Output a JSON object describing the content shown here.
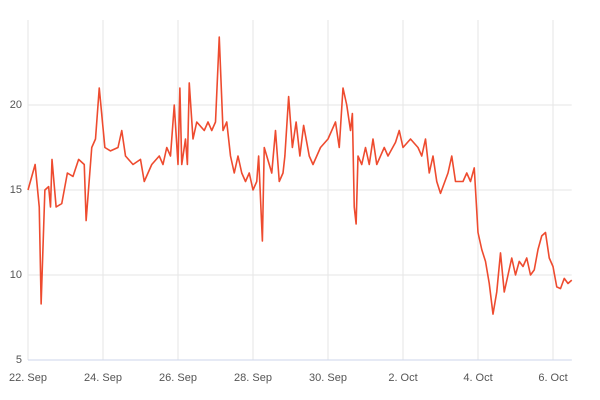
{
  "chart_data": {
    "type": "line",
    "x": [
      0,
      0.19,
      0.3,
      0.35,
      0.45,
      0.55,
      0.6,
      0.64,
      0.75,
      0.9,
      1.05,
      1.2,
      1.35,
      1.5,
      1.55,
      1.7,
      1.8,
      1.9,
      2.05,
      2.2,
      2.4,
      2.5,
      2.6,
      2.8,
      3.0,
      3.1,
      3.3,
      3.5,
      3.6,
      3.7,
      3.8,
      3.9,
      4.0,
      4.05,
      4.1,
      4.2,
      4.25,
      4.3,
      4.4,
      4.5,
      4.7,
      4.8,
      4.9,
      5.0,
      5.1,
      5.2,
      5.3,
      5.4,
      5.5,
      5.6,
      5.7,
      5.8,
      5.9,
      6.0,
      6.1,
      6.15,
      6.25,
      6.3,
      6.5,
      6.6,
      6.7,
      6.8,
      6.85,
      6.95,
      7.05,
      7.15,
      7.25,
      7.35,
      7.5,
      7.6,
      7.8,
      8.0,
      8.2,
      8.3,
      8.4,
      8.5,
      8.6,
      8.65,
      8.7,
      8.75,
      8.8,
      8.9,
      9.0,
      9.1,
      9.2,
      9.3,
      9.5,
      9.6,
      9.8,
      9.9,
      10.0,
      10.2,
      10.4,
      10.5,
      10.6,
      10.7,
      10.8,
      10.9,
      11.0,
      11.2,
      11.3,
      11.4,
      11.6,
      11.7,
      11.8,
      11.9,
      12.0,
      12.1,
      12.2,
      12.3,
      12.4,
      12.5,
      12.6,
      12.7,
      12.8,
      12.9,
      13.0,
      13.1,
      13.2,
      13.3,
      13.4,
      13.5,
      13.6,
      13.7,
      13.8,
      13.9,
      14.0,
      14.1,
      14.2,
      14.3,
      14.4,
      14.5
    ],
    "series": [
      {
        "color": "#ee4b2f",
        "values": [
          15,
          16.5,
          14,
          8.3,
          15,
          15.2,
          14,
          16.8,
          14,
          14.2,
          16,
          15.8,
          16.8,
          16.5,
          13.2,
          17.5,
          18,
          21,
          17.5,
          17.3,
          17.5,
          18.5,
          17,
          16.5,
          16.8,
          15.5,
          16.5,
          17,
          16.5,
          17.5,
          17,
          20,
          16.5,
          21,
          16.5,
          18,
          16.5,
          21.3,
          18,
          19,
          18.5,
          19,
          18.5,
          19,
          24,
          18.5,
          19,
          17,
          16,
          17,
          16,
          15.5,
          16,
          15,
          15.5,
          17,
          12,
          17.5,
          16,
          18.5,
          15.5,
          16,
          17,
          20.5,
          17.5,
          19,
          17,
          18.8,
          17,
          16.5,
          17.5,
          18,
          19,
          17.5,
          21,
          20,
          18.5,
          19.5,
          14,
          13,
          17,
          16.5,
          17.5,
          16.5,
          18,
          16.5,
          17.5,
          17,
          17.8,
          18.5,
          17.5,
          18,
          17.5,
          17,
          18,
          16,
          17,
          15.5,
          14.8,
          16,
          17,
          15.5,
          15.5,
          16,
          15.5,
          16.3,
          12.5,
          11.5,
          10.8,
          9.5,
          7.7,
          9,
          11.3,
          9,
          10,
          11,
          10,
          10.8,
          10.5,
          11,
          10,
          10.3,
          11.5,
          12.3,
          12.5,
          11,
          10.5,
          9.3,
          9.2,
          9.8,
          9.5,
          9.7
        ]
      }
    ],
    "xlim": [
      0,
      14.5
    ],
    "xticks": [
      {
        "value": 0,
        "label": "22. Sep"
      },
      {
        "value": 2,
        "label": "24. Sep"
      },
      {
        "value": 4,
        "label": "26. Sep"
      },
      {
        "value": 6,
        "label": "28. Sep"
      },
      {
        "value": 8,
        "label": "30. Sep"
      },
      {
        "value": 10,
        "label": "2. Oct"
      },
      {
        "value": 12,
        "label": "4. Oct"
      },
      {
        "value": 14,
        "label": "6. Oct"
      }
    ],
    "ylim": [
      5,
      25
    ],
    "yticks": [
      5,
      10,
      15,
      20
    ],
    "grid": true
  }
}
